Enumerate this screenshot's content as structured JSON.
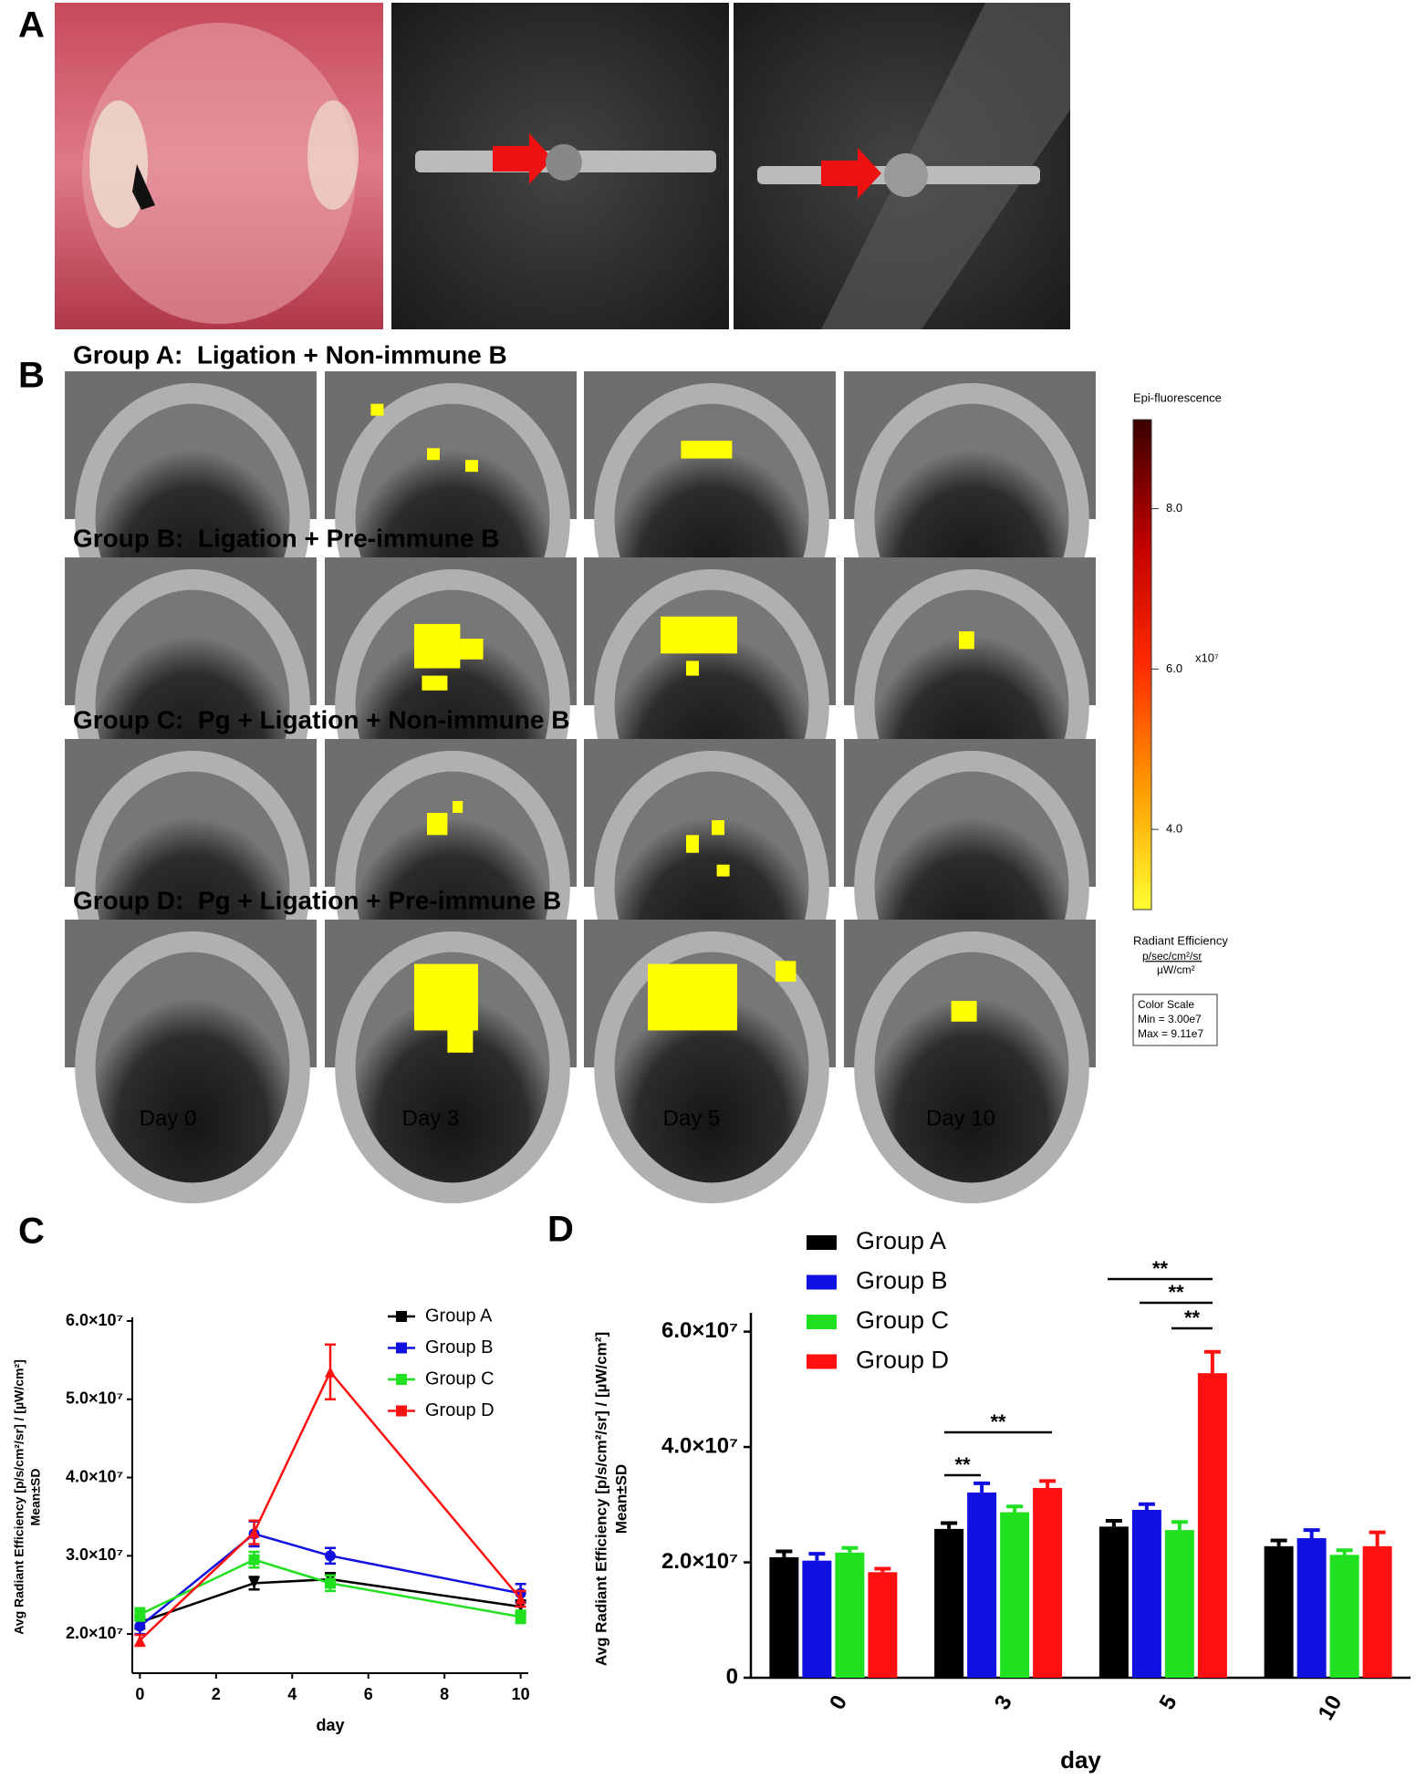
{
  "panel_labels": [
    "A",
    "B",
    "C",
    "D"
  ],
  "groups": [
    "Group A:  Ligation + Non-immune B",
    "Group B:  Ligation + Pre-immune B",
    "Group C:  Pg + Ligation + Non-immune B",
    "Group D:  Pg + Ligation + Pre-immune B"
  ],
  "days": [
    "Day 0",
    "Day 3",
    "Day 5",
    "Day 10"
  ],
  "colorbar": {
    "title": "Epi-fluorescence",
    "lim": [
      3.0,
      9.11
    ],
    "ticks": [
      {
        "value": 4,
        "label": "4.0"
      },
      {
        "value": 6,
        "label": "6.0"
      },
      {
        "value": 8,
        "label": "8.0"
      }
    ],
    "multiplier": "x10⁷",
    "colors": [
      "#ffff30",
      "#ff9a00",
      "#ff2a00",
      "#c00000",
      "#3a0000"
    ],
    "unit_label": "Radiant Efficiency",
    "unit_numerator": "p/sec/cm²/sr",
    "unit_denominator": "µW/cm²",
    "scale_box": [
      "Color Scale",
      "Min = 3.00e7",
      "Max = 9.11e7"
    ]
  },
  "chart_data": [
    {
      "type": "line",
      "y_label": "Avg Radiant Efficiency [p/s/cm²/sr] / [µW/cm²]",
      "y_label_2": "Mean±SD",
      "x_label": "day",
      "x": [
        0,
        3,
        5,
        10
      ],
      "xlim": [
        -0.2,
        10.2
      ],
      "xticks": [
        0,
        2,
        4,
        6,
        8,
        10
      ],
      "ylim": [
        15000000,
        60000000
      ],
      "yticks": [
        {
          "value": 20000000,
          "label": "2.0×10⁷"
        },
        {
          "value": 30000000,
          "label": "3.0×10⁷"
        },
        {
          "value": 40000000,
          "label": "4.0×10⁷"
        },
        {
          "value": 50000000,
          "label": "5.0×10⁷"
        },
        {
          "value": 60000000,
          "label": "6.0×10⁷"
        }
      ],
      "series": [
        {
          "name": "Group A",
          "color": "#000000",
          "marker": "triangle-down",
          "values": [
            21500000,
            26500000,
            27000000,
            23500000
          ],
          "errors": [
            800000,
            800000,
            800000,
            800000
          ]
        },
        {
          "name": "Group B",
          "color": "#1010e0",
          "marker": "circle",
          "values": [
            21000000,
            32800000,
            30000000,
            25200000
          ],
          "errors": [
            1000000,
            1600000,
            1000000,
            1200000
          ]
        },
        {
          "name": "Group C",
          "color": "#20e020",
          "marker": "square",
          "values": [
            22500000,
            29500000,
            26500000,
            22200000
          ],
          "errors": [
            800000,
            1000000,
            1000000,
            800000
          ]
        },
        {
          "name": "Group D",
          "color": "#ff1010",
          "marker": "triangle-up",
          "values": [
            19200000,
            33000000,
            53500000,
            24500000
          ],
          "errors": [
            700000,
            1500000,
            3500000,
            1000000
          ]
        }
      ]
    },
    {
      "type": "bar",
      "y_label": "Avg Radiant Efficiency [p/s/cm²/sr] / [µW/cm²]",
      "y_label_2": "Mean±SD",
      "x_label": "day",
      "categories": [
        "0",
        "3",
        "5",
        "10"
      ],
      "ylim": [
        0,
        62000000
      ],
      "yticks": [
        0,
        {
          "value": 20000000,
          "label": "2.0×10⁷"
        },
        {
          "value": 40000000,
          "label": "4.0×10⁷"
        },
        {
          "value": 60000000,
          "label": "6.0×10⁷"
        }
      ],
      "series": [
        {
          "name": "Group A",
          "color": "#000000",
          "values": [
            20900000,
            25800000,
            26200000,
            22800000
          ],
          "errors": [
            1000000,
            1000000,
            1000000,
            1000000
          ]
        },
        {
          "name": "Group B",
          "color": "#1010e0",
          "values": [
            20300000,
            32100000,
            29100000,
            24200000
          ],
          "errors": [
            1200000,
            1600000,
            1000000,
            1400000
          ]
        },
        {
          "name": "Group C",
          "color": "#20e020",
          "values": [
            21700000,
            28700000,
            25600000,
            21300000
          ],
          "errors": [
            800000,
            1000000,
            1400000,
            800000
          ]
        },
        {
          "name": "Group D",
          "color": "#ff1010",
          "values": [
            18300000,
            32900000,
            52800000,
            22800000
          ],
          "errors": [
            600000,
            1200000,
            3700000,
            2400000
          ]
        }
      ],
      "annotations": [
        "**",
        "**",
        "**",
        "**",
        "**"
      ]
    }
  ]
}
